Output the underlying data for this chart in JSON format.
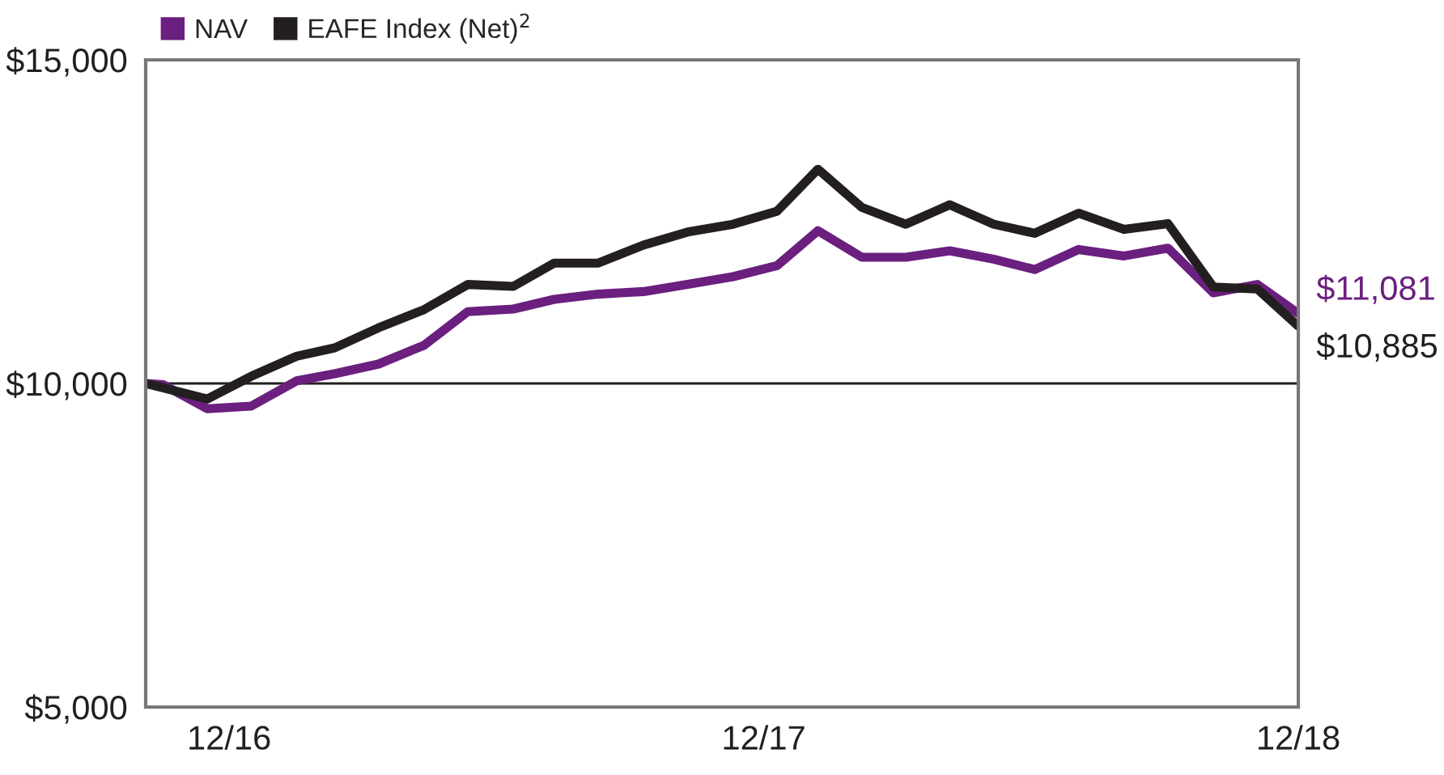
{
  "chart_data": {
    "type": "line",
    "series": [
      {
        "name": "NAV",
        "color": "#6b1f7f",
        "x": [
          "2016-11-04",
          "2016-11-16",
          "2016-12-16",
          "2017-01-15",
          "2017-02-15",
          "2017-03-13",
          "2017-04-12",
          "2017-05-13",
          "2017-06-12",
          "2017-07-13",
          "2017-08-10",
          "2017-09-09",
          "2017-10-10",
          "2017-11-09",
          "2017-12-10",
          "2018-01-09",
          "2018-02-06",
          "2018-03-08",
          "2018-04-07",
          "2018-05-07",
          "2018-06-06",
          "2018-07-04",
          "2018-08-03",
          "2018-09-03",
          "2018-10-03",
          "2018-11-03",
          "2018-12-03",
          "2018-12-31"
        ],
        "values": [
          10000,
          9980,
          9610,
          9650,
          10040,
          10150,
          10300,
          10590,
          11110,
          11150,
          11300,
          11380,
          11420,
          11530,
          11650,
          11820,
          12360,
          11950,
          11950,
          12050,
          11920,
          11760,
          12070,
          11970,
          12090,
          11400,
          11530,
          11081
        ]
      },
      {
        "name": "EAFE Index (Net)$^{2}$",
        "color": "#231f20",
        "x": [
          "2016-11-04",
          "2016-12-16",
          "2017-01-15",
          "2017-02-15",
          "2017-03-13",
          "2017-04-12",
          "2017-05-13",
          "2017-06-12",
          "2017-07-13",
          "2017-08-10",
          "2017-09-09",
          "2017-10-10",
          "2017-11-09",
          "2017-12-10",
          "2018-01-09",
          "2018-02-06",
          "2018-03-08",
          "2018-04-07",
          "2018-05-07",
          "2018-06-06",
          "2018-07-04",
          "2018-08-03",
          "2018-09-03",
          "2018-10-03",
          "2018-11-03",
          "2018-12-03",
          "2018-12-31"
        ],
        "values": [
          10000,
          9760,
          10110,
          10420,
          10550,
          10860,
          11140,
          11530,
          11500,
          11860,
          11860,
          12140,
          12340,
          12460,
          12660,
          13310,
          12720,
          12460,
          12760,
          12460,
          12320,
          12630,
          12380,
          12470,
          11490,
          11460,
          10885
        ]
      }
    ],
    "xlim": [
      "2016-11-04",
      "2018-12-31"
    ],
    "xticks": [
      {
        "value": "2016-12-31",
        "label": "12/16"
      },
      {
        "value": "2017-12-31",
        "label": "12/17"
      },
      {
        "value": "2018-12-31",
        "label": "12/18"
      }
    ],
    "ylim": [
      5000,
      15000
    ],
    "yticks": [
      {
        "value": 5000,
        "label": "$5,000"
      },
      {
        "value": 10000,
        "label": "$10,000"
      },
      {
        "value": 15000,
        "label": "$15,000"
      }
    ],
    "ref_lines": [
      {
        "axis": "y",
        "value": 10000,
        "color": "#231f20"
      }
    ],
    "annotations": [
      {
        "text": "$11,081",
        "x": "2018-12-31",
        "y": 11081
      },
      {
        "text": "$10,885",
        "x": "2018-12-31",
        "y": 10885
      }
    ],
    "legend": "top left",
    "grid": false,
    "marker": "none",
    "line_style": "solid"
  }
}
